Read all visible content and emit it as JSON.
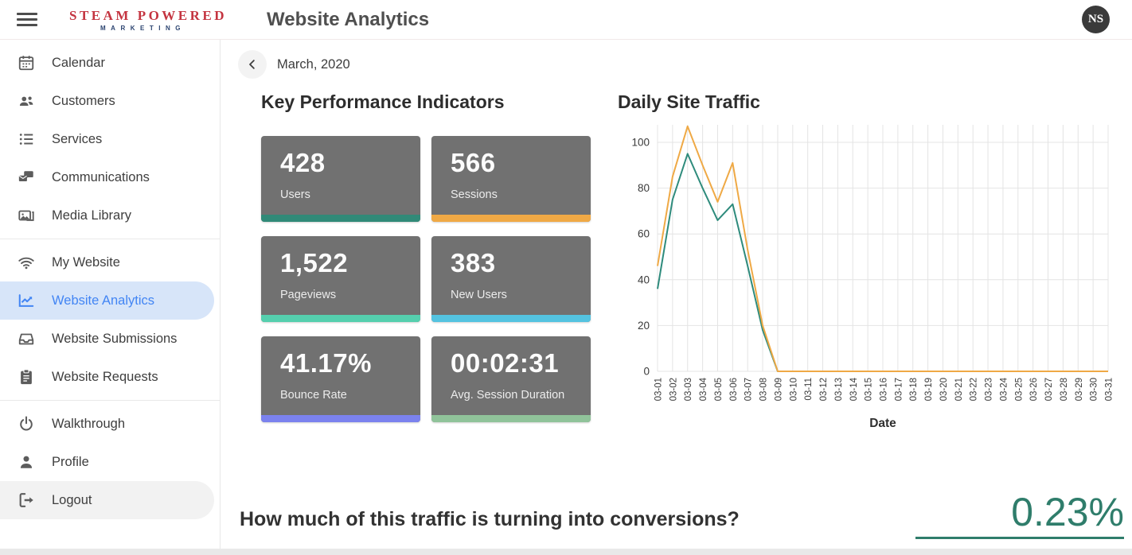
{
  "header": {
    "logo_line1": "STEAM POWERED",
    "logo_line2": "MARKETING",
    "title": "Website Analytics",
    "avatar_initials": "NS"
  },
  "sidebar": {
    "groups": [
      {
        "items": [
          {
            "label": "Calendar",
            "icon": "calendar-icon"
          },
          {
            "label": "Customers",
            "icon": "customers-icon"
          },
          {
            "label": "Services",
            "icon": "services-icon"
          },
          {
            "label": "Communications",
            "icon": "communications-icon"
          },
          {
            "label": "Media Library",
            "icon": "media-library-icon"
          }
        ]
      },
      {
        "items": [
          {
            "label": "My Website",
            "icon": "wifi-icon"
          },
          {
            "label": "Website Analytics",
            "icon": "chart-line-icon",
            "active": true
          },
          {
            "label": "Website Submissions",
            "icon": "inbox-icon"
          },
          {
            "label": "Website Requests",
            "icon": "clipboard-icon"
          }
        ]
      },
      {
        "items": [
          {
            "label": "Walkthrough",
            "icon": "power-icon"
          },
          {
            "label": "Profile",
            "icon": "person-icon"
          },
          {
            "label": "Logout",
            "icon": "sign-out-icon",
            "hovered": true
          }
        ]
      }
    ]
  },
  "month_nav": {
    "label": "March, 2020"
  },
  "kpi": {
    "title": "Key Performance Indicators",
    "cards": [
      {
        "value": "428",
        "label": "Users",
        "bar_color": "#318a78"
      },
      {
        "value": "566",
        "label": "Sessions",
        "bar_color": "#f0a945"
      },
      {
        "value": "1,522",
        "label": "Pageviews",
        "bar_color": "#55cfae"
      },
      {
        "value": "383",
        "label": "New Users",
        "bar_color": "#54c3e0"
      },
      {
        "value": "41.17%",
        "label": "Bounce Rate",
        "bar_color": "#7b82ee"
      },
      {
        "value": "00:02:31",
        "label": "Avg. Session Duration",
        "bar_color": "#90c39a"
      }
    ]
  },
  "chart_data": {
    "type": "line",
    "title": "Daily Site Traffic",
    "xlabel": "Date",
    "ylabel": "",
    "ylim": [
      0,
      108
    ],
    "yticks": [
      0,
      20,
      40,
      60,
      80,
      100
    ],
    "grid": true,
    "legend": false,
    "categories": [
      "03-01",
      "03-02",
      "03-03",
      "03-04",
      "03-05",
      "03-06",
      "03-07",
      "03-08",
      "03-09",
      "03-10",
      "03-11",
      "03-12",
      "03-13",
      "03-14",
      "03-15",
      "03-16",
      "03-17",
      "03-18",
      "03-19",
      "03-20",
      "03-21",
      "03-22",
      "03-23",
      "03-24",
      "03-25",
      "03-26",
      "03-27",
      "03-28",
      "03-29",
      "03-30",
      "03-31"
    ],
    "series": [
      {
        "name": "Users",
        "color": "#2e8b7c",
        "values": [
          36,
          75,
          95,
          80,
          66,
          73,
          46,
          18,
          0,
          0,
          0,
          0,
          0,
          0,
          0,
          0,
          0,
          0,
          0,
          0,
          0,
          0,
          0,
          0,
          0,
          0,
          0,
          0,
          0,
          0,
          0
        ]
      },
      {
        "name": "Sessions",
        "color": "#efa945",
        "values": [
          46,
          85,
          107,
          90,
          74,
          91,
          53,
          20,
          0,
          0,
          0,
          0,
          0,
          0,
          0,
          0,
          0,
          0,
          0,
          0,
          0,
          0,
          0,
          0,
          0,
          0,
          0,
          0,
          0,
          0,
          0
        ]
      }
    ]
  },
  "conversion": {
    "question": "How much of this traffic is turning into conversions?",
    "value": "0.23%",
    "accent_color": "#2f7d6b"
  }
}
